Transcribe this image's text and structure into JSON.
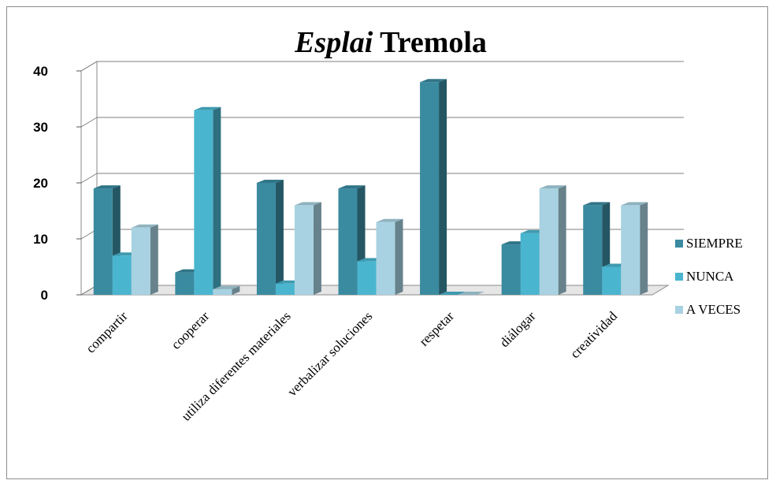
{
  "chart_data": {
    "type": "bar",
    "title": {
      "italic_part": "Esplai",
      "rest": "Tremola"
    },
    "categories": [
      "compartir",
      "cooperar",
      "utiliza diferentes materiales",
      "verbalizar soluciones",
      "respetar",
      "diálogar",
      "creatividad"
    ],
    "series": [
      {
        "name": "SIEMPRE",
        "color": "#3a8aa0",
        "values": [
          19,
          4,
          20,
          19,
          38,
          9,
          16
        ]
      },
      {
        "name": "NUNCA",
        "color": "#4ab5cf",
        "values": [
          7,
          33,
          2,
          6,
          0,
          11,
          5
        ]
      },
      {
        "name": "A VECES",
        "color": "#a8d2e1",
        "values": [
          12,
          1,
          16,
          13,
          0,
          19,
          16
        ]
      }
    ],
    "yticks": [
      "0",
      "10",
      "20",
      "30",
      "40"
    ],
    "ylim": [
      0,
      40
    ],
    "grid": true,
    "legend_position": "right",
    "style": "3d-clustered-column"
  }
}
